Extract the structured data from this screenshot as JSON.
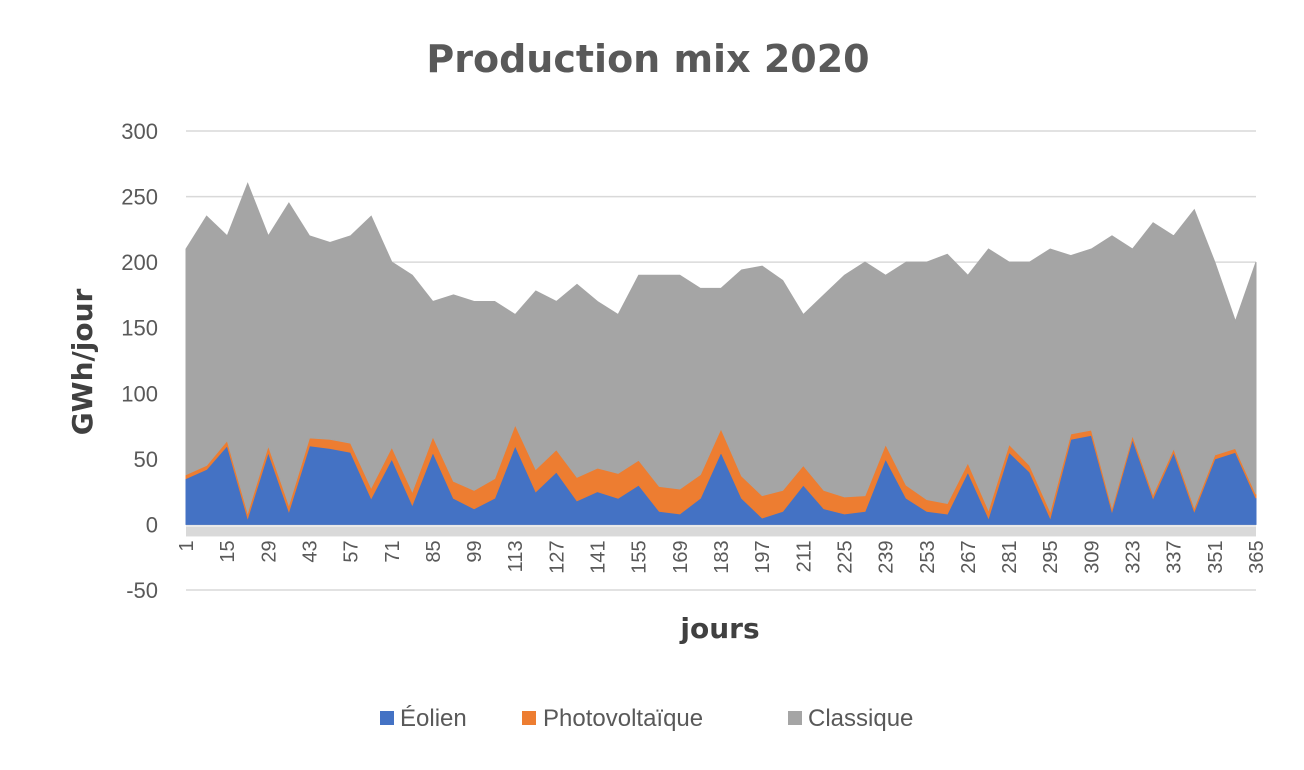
{
  "chart_data": {
    "type": "area",
    "stacked": true,
    "title": "Production mix 2020",
    "xlabel": "jours",
    "ylabel": "GWh/jour",
    "ylim": [
      -50,
      300
    ],
    "yticks": [
      -50,
      0,
      50,
      100,
      150,
      200,
      250,
      300
    ],
    "xlim": [
      1,
      365
    ],
    "x_tick_labels": [
      "1",
      "15",
      "29",
      "43",
      "57",
      "71",
      "85",
      "99",
      "113",
      "127",
      "141",
      "155",
      "169",
      "183",
      "197",
      "211",
      "225",
      "239",
      "253",
      "267",
      "281",
      "295",
      "309",
      "323",
      "337",
      "351",
      "365"
    ],
    "grid": true,
    "legend_position": "bottom",
    "colors": {
      "eolien": "#4472c4",
      "photovoltaique": "#ed7d31",
      "classique": "#a5a5a5"
    },
    "series": [
      {
        "name": "Éolien",
        "color": "#4472c4",
        "x": [
          1,
          8,
          15,
          22,
          29,
          36,
          43,
          50,
          57,
          64,
          71,
          78,
          85,
          92,
          99,
          106,
          113,
          120,
          127,
          134,
          141,
          148,
          155,
          162,
          169,
          176,
          183,
          190,
          197,
          204,
          211,
          218,
          225,
          232,
          239,
          246,
          253,
          260,
          267,
          274,
          281,
          288,
          295,
          302,
          309,
          316,
          323,
          330,
          337,
          344,
          351,
          358,
          365
        ],
        "values": [
          35,
          42,
          60,
          5,
          55,
          10,
          60,
          58,
          55,
          20,
          50,
          15,
          55,
          20,
          12,
          20,
          60,
          25,
          40,
          18,
          25,
          20,
          30,
          10,
          8,
          20,
          55,
          20,
          5,
          10,
          30,
          12,
          8,
          10,
          50,
          20,
          10,
          8,
          40,
          5,
          55,
          40,
          5,
          65,
          68,
          10,
          65,
          20,
          55,
          10,
          50,
          55,
          20
        ]
      },
      {
        "name": "Photovoltaïque",
        "color": "#ed7d31",
        "x": [
          1,
          8,
          15,
          22,
          29,
          36,
          43,
          50,
          57,
          64,
          71,
          78,
          85,
          92,
          99,
          106,
          113,
          120,
          127,
          134,
          141,
          148,
          155,
          162,
          169,
          176,
          183,
          190,
          197,
          204,
          211,
          218,
          225,
          232,
          239,
          246,
          253,
          260,
          267,
          274,
          281,
          288,
          295,
          302,
          309,
          316,
          323,
          330,
          337,
          344,
          351,
          358,
          365
        ],
        "values": [
          3,
          3,
          4,
          4,
          5,
          5,
          6,
          7,
          7,
          8,
          9,
          10,
          12,
          13,
          14,
          15,
          16,
          17,
          17,
          18,
          18,
          19,
          19,
          19,
          19,
          18,
          18,
          17,
          17,
          16,
          15,
          14,
          13,
          12,
          11,
          10,
          9,
          8,
          7,
          6,
          6,
          5,
          5,
          4,
          4,
          3,
          3,
          3,
          3,
          3,
          3,
          3,
          3
        ]
      },
      {
        "name": "Classique",
        "color": "#a5a5a5",
        "x": [
          1,
          8,
          15,
          22,
          29,
          36,
          43,
          50,
          57,
          64,
          71,
          78,
          85,
          92,
          99,
          106,
          113,
          120,
          127,
          134,
          141,
          148,
          155,
          162,
          169,
          176,
          183,
          190,
          197,
          204,
          211,
          218,
          225,
          232,
          239,
          246,
          253,
          260,
          267,
          274,
          281,
          288,
          295,
          302,
          309,
          316,
          323,
          330,
          337,
          344,
          351,
          358,
          365
        ],
        "values": [
          172,
          190,
          156,
          251,
          160,
          230,
          154,
          150,
          158,
          207,
          141,
          165,
          103,
          142,
          144,
          135,
          84,
          136,
          113,
          147,
          127,
          121,
          141,
          161,
          163,
          142,
          107,
          157,
          175,
          160,
          115,
          149,
          169,
          178,
          129,
          170,
          181,
          190,
          143,
          199,
          139,
          155,
          200,
          136,
          138,
          207,
          142,
          207,
          162,
          227,
          147,
          97,
          177
        ]
      }
    ]
  },
  "legend": {
    "items": [
      {
        "label": "Éolien",
        "color": "#4472c4"
      },
      {
        "label": "Photovoltaïque",
        "color": "#ed7d31"
      },
      {
        "label": "Classique",
        "color": "#a5a5a5"
      }
    ]
  }
}
